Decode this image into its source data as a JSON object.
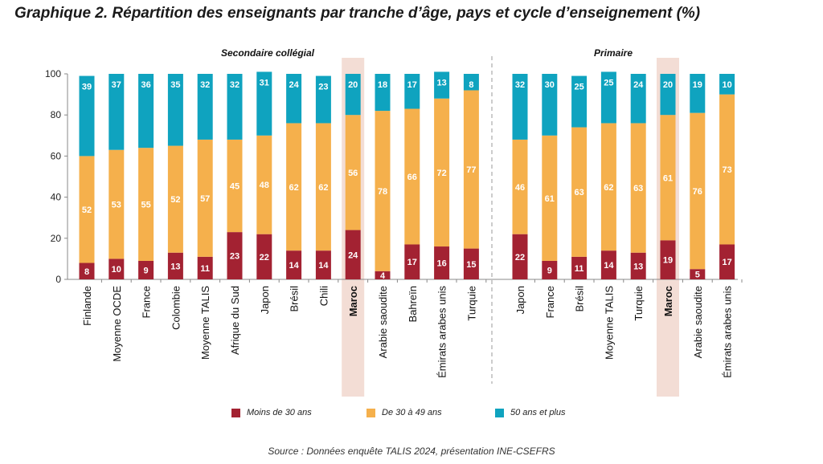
{
  "title": "Graphique 2. Répartition des enseignants par tranche d’âge, pays et cycle d’enseignement (%)",
  "source": "Source : Données enquête TALIS 2024, présentation INE-CSEFRS",
  "colors": {
    "young": "#a32232",
    "mid": "#f5b04c",
    "old": "#0fa3bf",
    "highlight": "#f3ddd5"
  },
  "chart_data": {
    "type": "bar",
    "stacked": true,
    "ylim": [
      0,
      100
    ],
    "yticks": [
      "0",
      "20",
      "40",
      "60",
      "80",
      "100"
    ],
    "grid": false,
    "legend_position": "bottom",
    "highlight_category": "Maroc",
    "series_names": [
      "Moins de 30 ans",
      "De 30 à 49 ans",
      "50 ans et plus"
    ],
    "groups": [
      {
        "title": "Secondaire collégial",
        "categories": [
          "Finlande",
          "Moyenne OCDE",
          "France",
          "Colombie",
          "Moyenne TALIS",
          "Afrique du Sud",
          "Japon",
          "Brésil",
          "Chili",
          "Maroc",
          "Arabie saoudite",
          "Bahreïn",
          "Émirats arabes unis",
          "Turquie"
        ],
        "series": [
          {
            "name": "Moins de 30 ans",
            "values": [
              8,
              10,
              9,
              13,
              11,
              23,
              22,
              14,
              14,
              24,
              4,
              17,
              16,
              15
            ]
          },
          {
            "name": "De 30 à 49 ans",
            "values": [
              52,
              53,
              55,
              52,
              57,
              45,
              48,
              62,
              62,
              56,
              78,
              66,
              72,
              77
            ]
          },
          {
            "name": "50 ans et plus",
            "values": [
              39,
              37,
              36,
              35,
              32,
              32,
              31,
              24,
              23,
              20,
              18,
              17,
              13,
              8
            ]
          }
        ]
      },
      {
        "title": "Primaire",
        "categories": [
          "Japon",
          "France",
          "Brésil",
          "Moyenne TALIS",
          "Turquie",
          "Maroc",
          "Arabie saoudite",
          "Émirats arabes unis"
        ],
        "series": [
          {
            "name": "Moins de 30 ans",
            "values": [
              22,
              9,
              11,
              14,
              13,
              19,
              5,
              17
            ]
          },
          {
            "name": "De 30 à 49 ans",
            "values": [
              46,
              61,
              63,
              62,
              63,
              61,
              76,
              73
            ]
          },
          {
            "name": "50 ans et plus",
            "values": [
              32,
              30,
              25,
              25,
              24,
              20,
              19,
              10
            ]
          }
        ]
      }
    ]
  }
}
